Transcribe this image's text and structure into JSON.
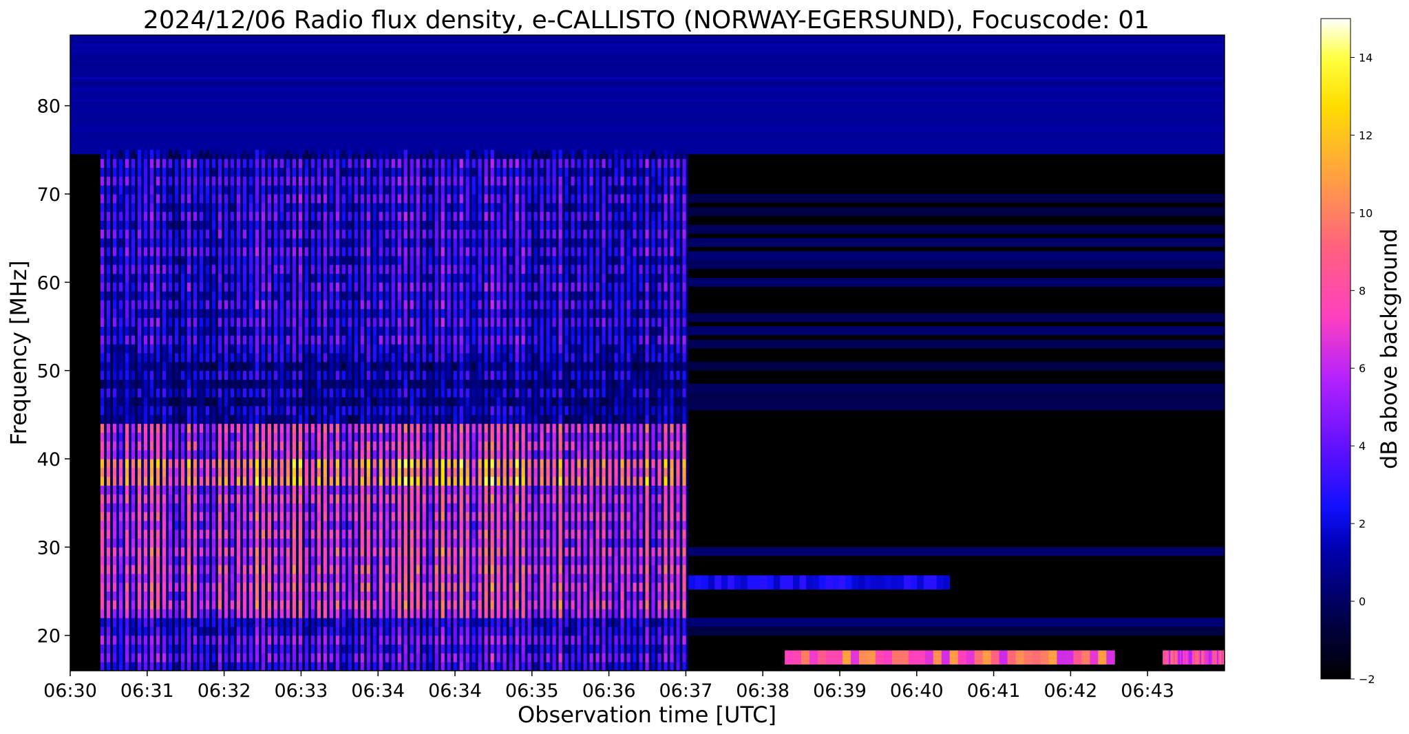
{
  "chart_data": {
    "type": "heatmap",
    "title": "2024/12/06  Radio flux density, e-CALLISTO (NORWAY-EGERSUND), Focuscode: 01",
    "xlabel": "Observation time [UTC]",
    "ylabel": "Frequency [MHz]",
    "x_tick_labels": [
      "06:30",
      "06:31",
      "06:32",
      "06:33",
      "06:34",
      "06:34",
      "06:35",
      "06:36",
      "06:37",
      "06:38",
      "06:39",
      "06:40",
      "06:41",
      "06:42",
      "06:43"
    ],
    "y_ticks": [
      20,
      30,
      40,
      50,
      60,
      70,
      80
    ],
    "y_tick_labels": [
      "20",
      "30",
      "40",
      "50",
      "60",
      "70",
      "80"
    ],
    "ylim": [
      16,
      88
    ],
    "colorbar": {
      "label": "dB above background",
      "range": [
        -2,
        15
      ],
      "ticks": [
        -2,
        0,
        2,
        4,
        6,
        8,
        10,
        12,
        14
      ],
      "tick_labels": [
        "−2",
        "0",
        "2",
        "4",
        "6",
        "8",
        "10",
        "12",
        "14"
      ],
      "colormap": "gnuplot2"
    },
    "features": {
      "strong_interference": {
        "time_start": "06:30:22",
        "time_end": "06:37:30",
        "freq_range_MHz": [
          16,
          74.5
        ],
        "peak_dB": 15,
        "peak_freq_MHz": [
          37,
          40
        ],
        "pattern": "vertical striping"
      },
      "narrowband_bursts": [
        {
          "freq_MHz": 17.5,
          "time_start": "06:38:40",
          "time_end": "06:42:40",
          "level_dB": 11
        },
        {
          "freq_MHz": 17.5,
          "time_start": "06:43:15",
          "time_end": "06:44:00",
          "level_dB": 10
        },
        {
          "freq_MHz": 26,
          "time_start": "06:37:30",
          "time_end": "06:40:40",
          "level_dB": 3
        }
      ]
    }
  }
}
